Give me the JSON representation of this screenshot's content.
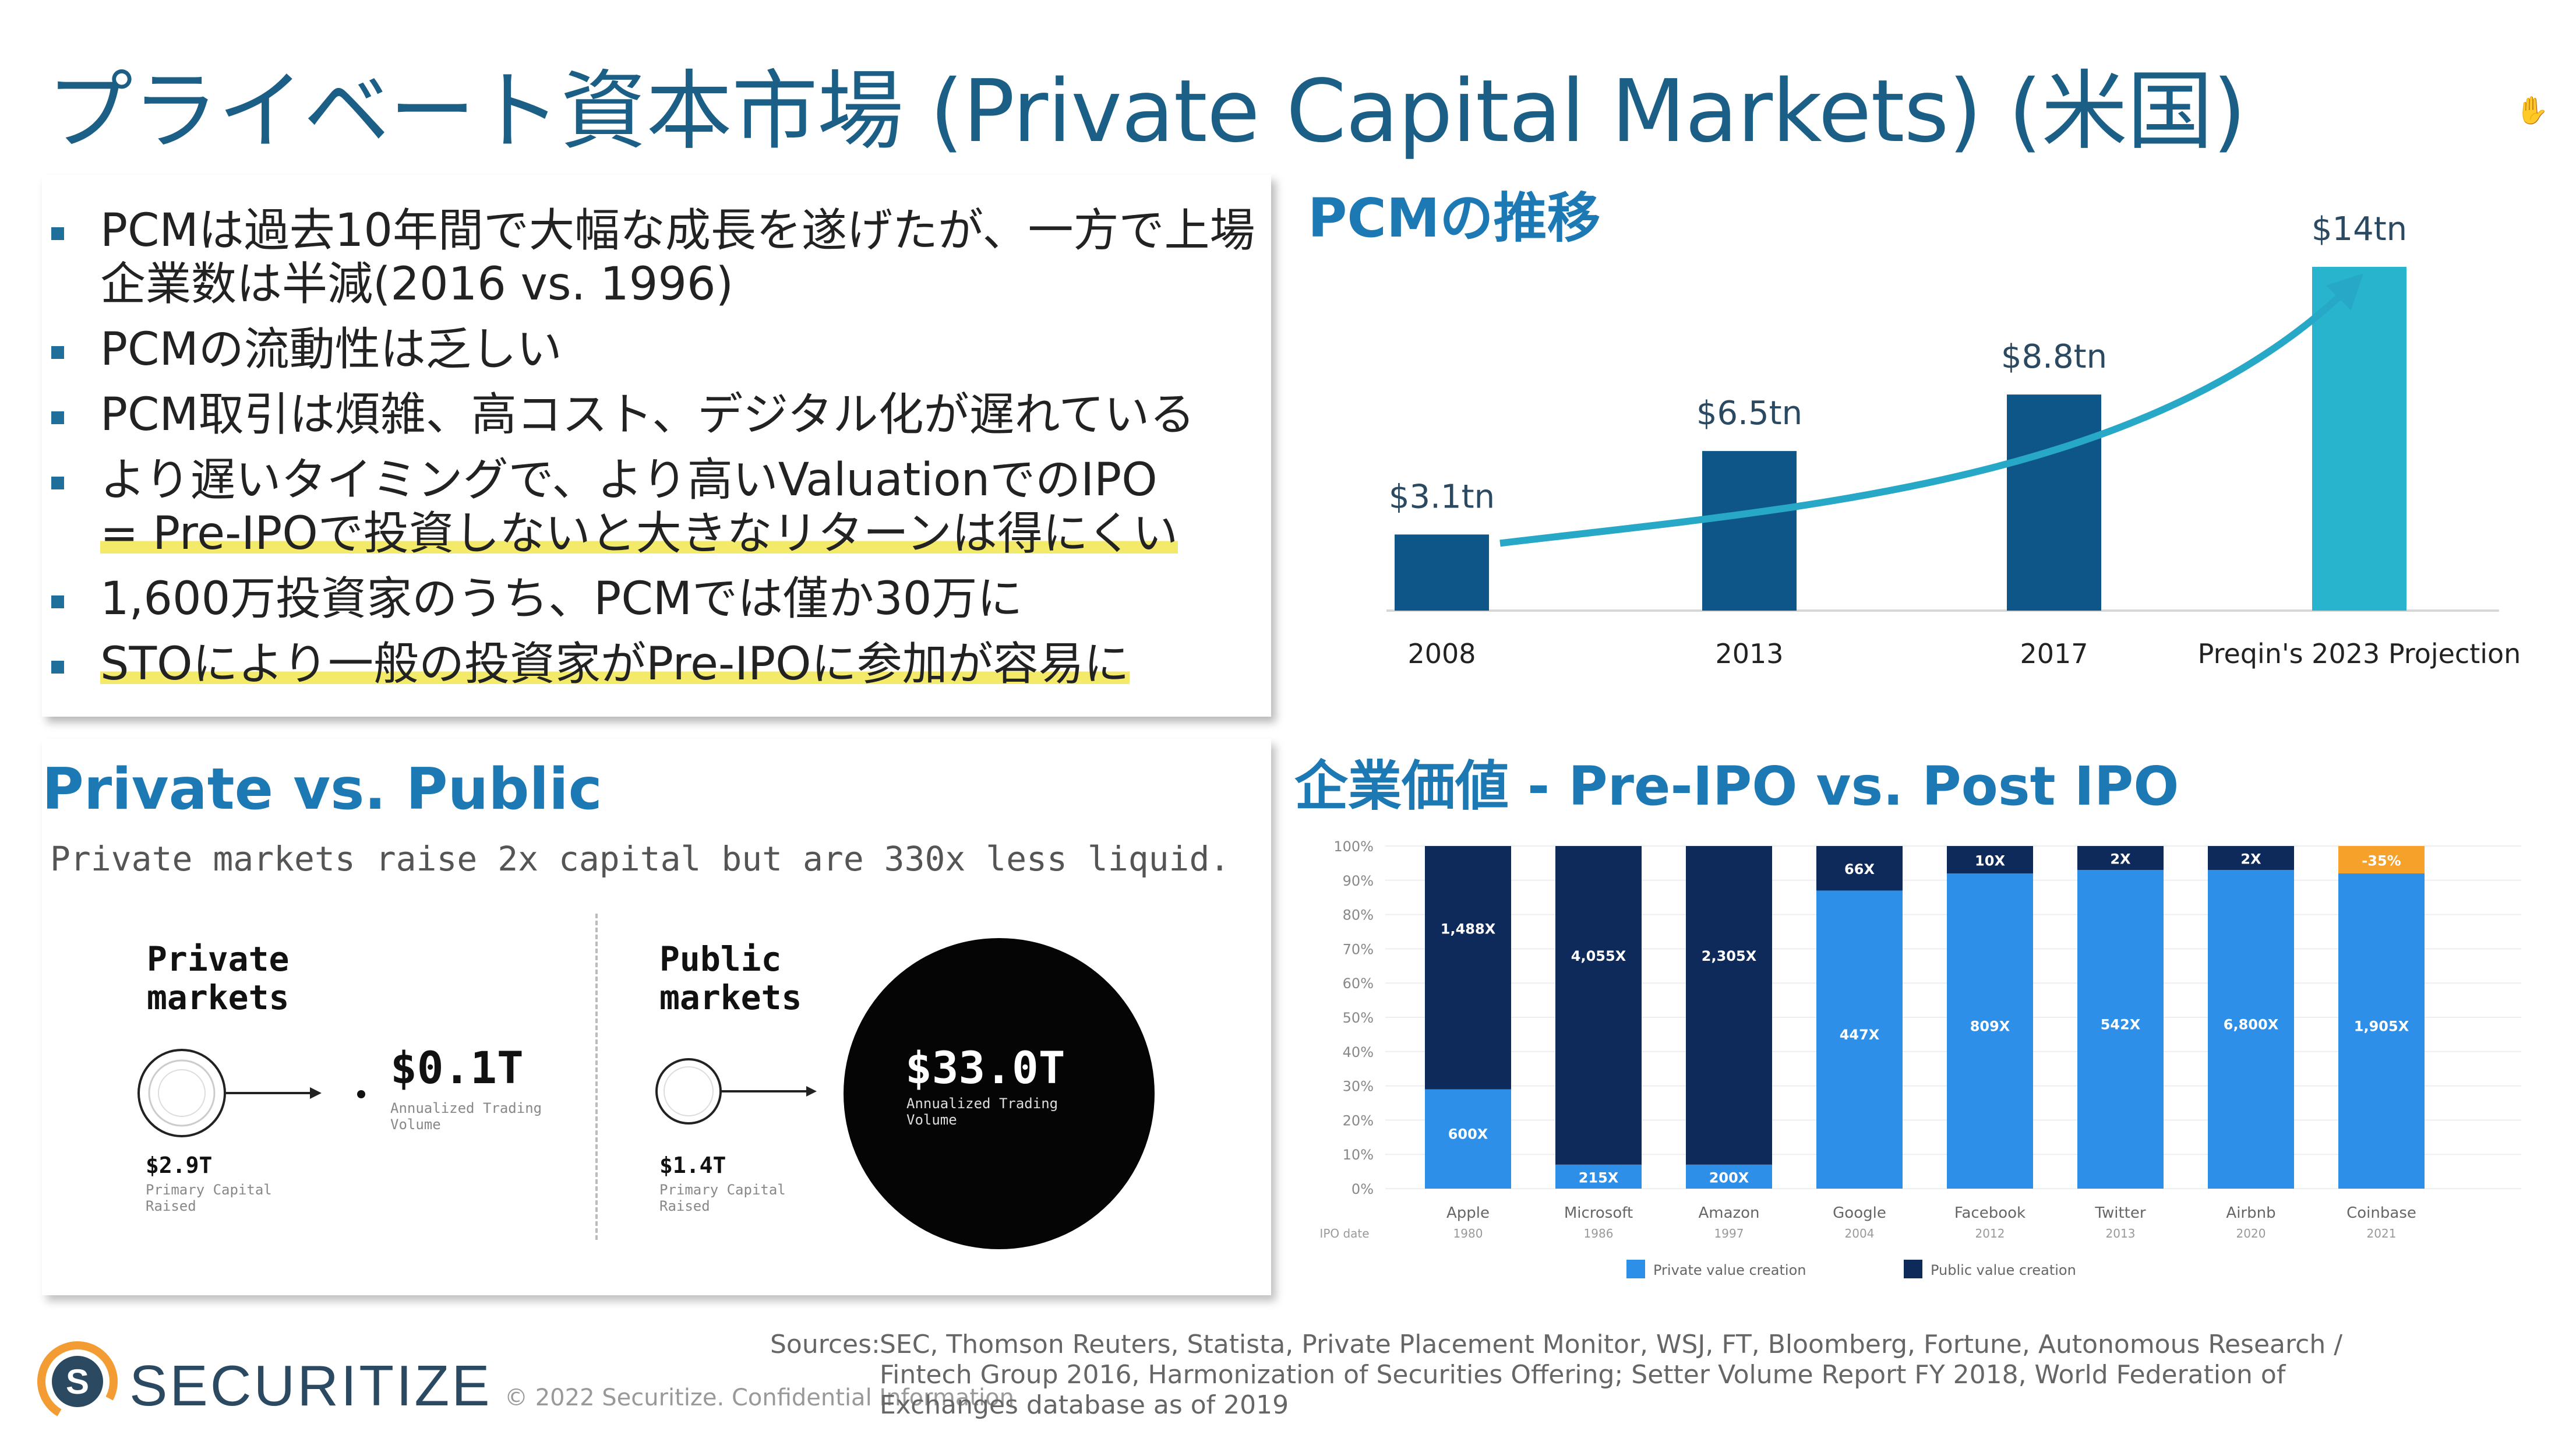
{
  "slide": {
    "title": "プライベート資本市場 (Private Capital Markets) (米国)"
  },
  "cursor_icon": "hand-icon",
  "bullets": [
    "PCMは過去10年間で大幅な成長を遂げたが、一方で上場企業数は半減(2016 vs. 1996)",
    "PCMの流動性は乏しい",
    "PCM取引は煩雑、高コスト、デジタル化が遅れている",
    "より遅いタイミングで、より高いValuationでのIPO",
    "= Pre-IPOで投資しないと大きなリターンは得にくい",
    "1,600万投資家のうち、PCMでは僅か30万に",
    "STOにより一般の投資家がPre-IPOに参加が容易に"
  ],
  "pcm": {
    "title": "PCMの推移"
  },
  "chart_data": [
    {
      "type": "bar",
      "title": "PCMの推移",
      "categories": [
        "2008",
        "2013",
        "2017",
        "Preqin's 2023 Projection"
      ],
      "values": [
        3.1,
        6.5,
        8.8,
        14
      ],
      "value_labels": [
        "$3.1tn",
        "$6.5tn",
        "$8.8tn",
        "$14tn"
      ],
      "unit": "tn USD",
      "colors": [
        "#0f5688",
        "#0f5688",
        "#0f5688",
        "#27b4cc"
      ],
      "trend_arrow": true,
      "arrow_color": "#27a8c6",
      "ylim": [
        0,
        14
      ]
    },
    {
      "type": "bar",
      "stacked": true,
      "title": "企業価値 - Pre-IPO vs. Post IPO",
      "categories": [
        "Apple",
        "Microsoft",
        "Amazon",
        "Google",
        "Facebook",
        "Twitter",
        "Airbnb",
        "Coinbase"
      ],
      "ipo_dates": [
        "1980",
        "1986",
        "1997",
        "2004",
        "2012",
        "2013",
        "2020",
        "2021"
      ],
      "x_prefix_label": "IPO date",
      "yticks": [
        "100%",
        "90%",
        "80%",
        "70%",
        "60%",
        "50%",
        "40%",
        "30%",
        "20%",
        "10%",
        "0%"
      ],
      "ylim": [
        0,
        100
      ],
      "series": [
        {
          "name": "Private value creation",
          "color": "#2d8fe8",
          "values": [
            29,
            7,
            7,
            87,
            92,
            93,
            93,
            92
          ],
          "labels": [
            "600X",
            "215X",
            "200X",
            "447X",
            "809X",
            "542X",
            "6,800X",
            "1,905X"
          ]
        },
        {
          "name": "Public value creation",
          "color": "#0e2a5a",
          "values": [
            71,
            93,
            93,
            13,
            8,
            7,
            7,
            0
          ],
          "labels": [
            "1,488X",
            "4,055X",
            "2,305X",
            "66X",
            "10X",
            "2X",
            "2X",
            ""
          ]
        },
        {
          "name": "",
          "color": "#f5a12a",
          "values": [
            0,
            0,
            0,
            0,
            0,
            0,
            0,
            8
          ],
          "labels": [
            "",
            "",
            "",
            "",
            "",
            "",
            "",
            "-35%"
          ]
        }
      ],
      "legend": [
        "Private value creation",
        "Public value creation"
      ],
      "legend_position": "bottom"
    }
  ],
  "pvp": {
    "title": "Private vs. Public",
    "subtitle": "Private markets raise 2x capital but are 330x less liquid.",
    "private_label_1": "Private",
    "private_label_2": "markets",
    "private_volume": "$0.1T",
    "private_volume_caption_1": "Annualized Trading",
    "private_volume_caption_2": "Volume",
    "private_raised": "$2.9T",
    "private_raised_caption_1": "Primary Capital",
    "private_raised_caption_2": "Raised",
    "public_label_1": "Public",
    "public_label_2": "markets",
    "public_volume": "$33.0T",
    "public_volume_caption_1": "Annualized Trading",
    "public_volume_caption_2": "Volume",
    "public_raised": "$1.4T",
    "public_raised_caption_1": "Primary Capital",
    "public_raised_caption_2": "Raised"
  },
  "ev": {
    "title": "企業価値 - Pre-IPO vs. Post IPO"
  },
  "footer": {
    "logo_text": "SECURITIZE",
    "logo_letter": "S",
    "copyright": "© 2022 Securitize. Confidential Information",
    "sources_label": "Sources:",
    "sources": "SEC, Thomson Reuters, Statista, Private Placement Monitor, WSJ, FT, Bloomberg, Fortune, Autonomous Research / Fintech Group 2016, Harmonization of Securities Offering; Setter Volume Report FY 2018, World Federation of Exchanges database as of 2019"
  }
}
